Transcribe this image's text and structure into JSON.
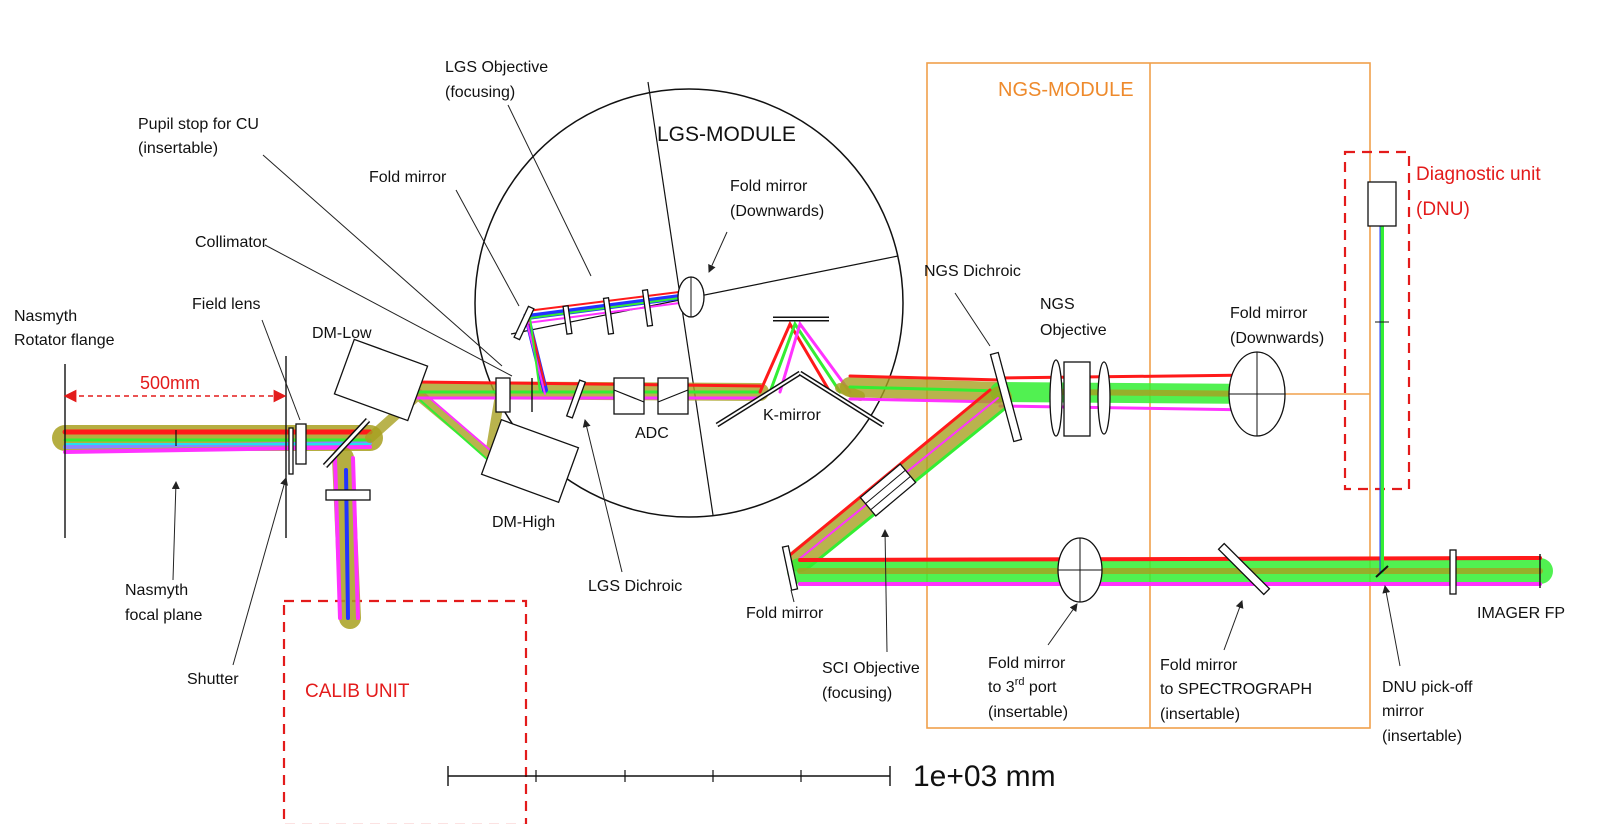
{
  "colors": {
    "beam_red": "#ff1a1a",
    "beam_magenta": "#ff33ff",
    "beam_green": "#33ee33",
    "beam_blue": "#2233ff",
    "beam_olive": "#a8a020",
    "beam_cyan": "#22e0ee",
    "orange_frame": "#f0a04b",
    "red_dashed": "#e31b1b"
  },
  "labels": {
    "nasmyth_rotator": [
      "Nasmyth",
      "Rotator flange"
    ],
    "field_lens": "Field lens",
    "dm_low": "DM-Low",
    "dm_high": "DM-High",
    "collimator": "Collimator",
    "pupil_stop": [
      "Pupil stop for CU",
      "(insertable)"
    ],
    "fold_mirror_lgs": "Fold mirror",
    "lgs_objective": [
      "LGS Objective",
      "(focusing)"
    ],
    "lgs_module": "LGS-MODULE",
    "fold_mirror_down_lgs": [
      "Fold mirror",
      "(Downwards)"
    ],
    "adc": "ADC",
    "k_mirror": "K-mirror",
    "lgs_dichroic": "LGS Dichroic",
    "ngs_module": "NGS-MODULE",
    "ngs_dichroic": "NGS Dichroic",
    "ngs_objective": [
      "NGS",
      "Objective"
    ],
    "fold_mirror_down_ngs": [
      "Fold mirror",
      "(Downwards)"
    ],
    "diagnostic_unit": [
      "Diagnostic unit",
      "(DNU)"
    ],
    "nasmyth_focal": [
      "Nasmyth",
      "focal plane"
    ],
    "shutter": "Shutter",
    "calib_unit": "CALIB UNIT",
    "fold_mirror_sci": "Fold mirror",
    "sci_objective": [
      "SCI Objective",
      "(focusing)"
    ],
    "fold_3rd_a": "Fold mirror",
    "fold_3rd_b_pre": "to 3",
    "fold_3rd_b_sup": "rd",
    "fold_3rd_b_post": " port",
    "fold_3rd_c": "(insertable)",
    "fold_spectro": [
      "Fold mirror",
      "to SPECTROGRAPH",
      "(insertable)"
    ],
    "dnu_pickoff": [
      "DNU pick-off",
      "mirror",
      "(insertable)"
    ],
    "imager_fp": "IMAGER FP",
    "dim_500": "500mm",
    "scale_bar": "1e+03 mm"
  }
}
